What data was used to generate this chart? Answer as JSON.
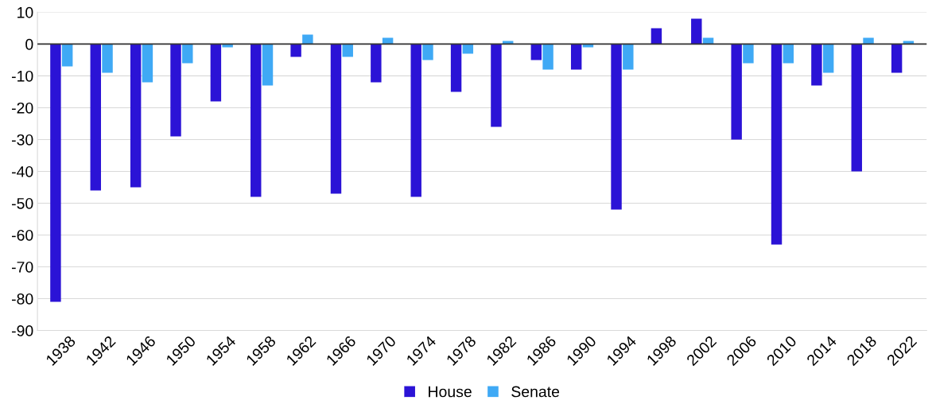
{
  "chart_data": {
    "type": "bar",
    "categories": [
      "1938",
      "1942",
      "1946",
      "1950",
      "1954",
      "1958",
      "1962",
      "1966",
      "1970",
      "1974",
      "1978",
      "1982",
      "1986",
      "1990",
      "1994",
      "1998",
      "2002",
      "2006",
      "2010",
      "2014",
      "2018",
      "2022"
    ],
    "series": [
      {
        "name": "House",
        "color": "#2b13d6",
        "values": [
          -81,
          -46,
          -45,
          -29,
          -18,
          -48,
          -4,
          -47,
          -12,
          -48,
          -15,
          -26,
          -5,
          -8,
          -52,
          5,
          8,
          -30,
          -63,
          -13,
          -40,
          -9
        ]
      },
      {
        "name": "Senate",
        "color": "#3fa9f5",
        "values": [
          -7,
          -9,
          -12,
          -6,
          -1,
          -13,
          3,
          -4,
          2,
          -5,
          -3,
          1,
          -8,
          -1,
          -8,
          0,
          2,
          -6,
          -6,
          -9,
          2,
          1
        ]
      }
    ],
    "ylim": [
      -90,
      10
    ],
    "yticks": [
      -90,
      -80,
      -70,
      -60,
      -50,
      -40,
      -30,
      -20,
      -10,
      0,
      10
    ],
    "grid": "y",
    "legend": "bottom"
  }
}
